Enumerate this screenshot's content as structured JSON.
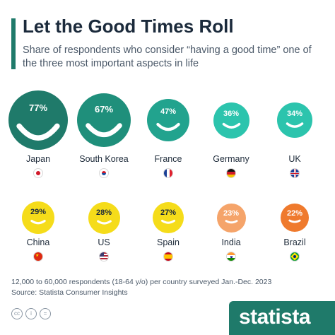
{
  "header": {
    "title": "Let the Good Times Roll",
    "subtitle": "Share of respondents who consider “having a good time” one of the three most important aspects in life"
  },
  "colors": {
    "accent": "#1f7a6a",
    "teal_dark": "#1f7a6a",
    "teal_mid": "#22a38e",
    "teal_light": "#2cc4ad",
    "yellow": "#f5dc1a",
    "orange_light": "#f5a46a",
    "orange": "#ef7a2d"
  },
  "chart_data": {
    "type": "bar",
    "title": "Let the Good Times Roll",
    "subtitle": "Share of respondents who consider “having a good time” one of the three most important aspects in life",
    "categories": [
      "Japan",
      "South Korea",
      "France",
      "Germany",
      "UK",
      "China",
      "US",
      "Spain",
      "India",
      "Brazil"
    ],
    "values": [
      77,
      67,
      47,
      36,
      34,
      29,
      28,
      27,
      23,
      22
    ],
    "value_labels": [
      "77%",
      "67%",
      "47%",
      "36%",
      "34%",
      "29%",
      "28%",
      "27%",
      "23%",
      "22%"
    ],
    "unit": "%",
    "items": [
      {
        "country": "Japan",
        "value": 77,
        "label": "77%",
        "color": "#1f7a6a",
        "flag": "japan-flag-icon"
      },
      {
        "country": "South Korea",
        "value": 67,
        "label": "67%",
        "color": "#1f8f7b",
        "flag": "south-korea-flag-icon"
      },
      {
        "country": "France",
        "value": 47,
        "label": "47%",
        "color": "#22a38e",
        "flag": "france-flag-icon"
      },
      {
        "country": "Germany",
        "value": 36,
        "label": "36%",
        "color": "#2cc4ad",
        "flag": "germany-flag-icon"
      },
      {
        "country": "UK",
        "value": 34,
        "label": "34%",
        "color": "#2cc4ad",
        "flag": "uk-flag-icon"
      },
      {
        "country": "China",
        "value": 29,
        "label": "29%",
        "color": "#f5dc1a",
        "flag": "china-flag-icon"
      },
      {
        "country": "US",
        "value": 28,
        "label": "28%",
        "color": "#f5dc1a",
        "flag": "us-flag-icon"
      },
      {
        "country": "Spain",
        "value": 27,
        "label": "27%",
        "color": "#f5dc1a",
        "flag": "spain-flag-icon"
      },
      {
        "country": "India",
        "value": 23,
        "label": "23%",
        "color": "#f5a46a",
        "flag": "india-flag-icon"
      },
      {
        "country": "Brazil",
        "value": 22,
        "label": "22%",
        "color": "#ef7a2d",
        "flag": "brazil-flag-icon"
      }
    ]
  },
  "footer": {
    "note": "12,000 to 60,000 respondents (18-64 y/o) per country surveyed Jan.-Dec. 2023",
    "source": "Source: Statista Consumer Insights"
  },
  "license_icons": [
    "cc-icon",
    "info-icon",
    "equals-icon"
  ],
  "brand": {
    "name": "statista",
    "icon": "statista-logo-icon"
  }
}
